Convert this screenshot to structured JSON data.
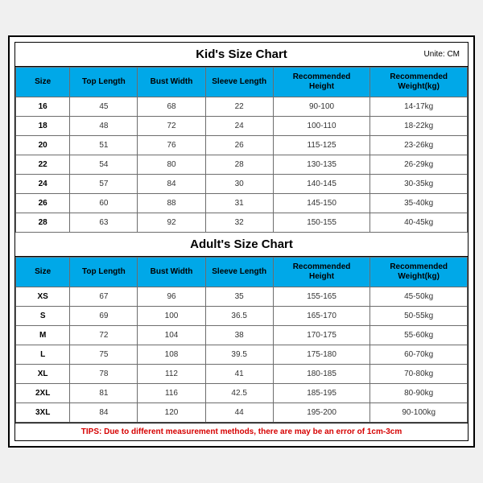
{
  "header_bg": "#00a8e8",
  "header_fg": "#000000",
  "tips_color": "#d60000",
  "tips_text": "TIPS: Due to different measurement methods, there are may be an error of 1cm-3cm",
  "kids": {
    "title": "Kid's Size Chart",
    "unit": "Unite: CM",
    "columns": [
      "Size",
      "Top Length",
      "Bust Width",
      "Sleeve Length",
      "Recommended Height",
      "Recommended Weight(kg)"
    ],
    "rows": [
      [
        "16",
        "45",
        "68",
        "22",
        "90-100",
        "14-17kg"
      ],
      [
        "18",
        "48",
        "72",
        "24",
        "100-110",
        "18-22kg"
      ],
      [
        "20",
        "51",
        "76",
        "26",
        "115-125",
        "23-26kg"
      ],
      [
        "22",
        "54",
        "80",
        "28",
        "130-135",
        "26-29kg"
      ],
      [
        "24",
        "57",
        "84",
        "30",
        "140-145",
        "30-35kg"
      ],
      [
        "26",
        "60",
        "88",
        "31",
        "145-150",
        "35-40kg"
      ],
      [
        "28",
        "63",
        "92",
        "32",
        "150-155",
        "40-45kg"
      ]
    ]
  },
  "adults": {
    "title": "Adult's Size Chart",
    "columns": [
      "Size",
      "Top Length",
      "Bust Width",
      "Sleeve Length",
      "Recommended Height",
      "Recommended Weight(kg)"
    ],
    "rows": [
      [
        "XS",
        "67",
        "96",
        "35",
        "155-165",
        "45-50kg"
      ],
      [
        "S",
        "69",
        "100",
        "36.5",
        "165-170",
        "50-55kg"
      ],
      [
        "M",
        "72",
        "104",
        "38",
        "170-175",
        "55-60kg"
      ],
      [
        "L",
        "75",
        "108",
        "39.5",
        "175-180",
        "60-70kg"
      ],
      [
        "XL",
        "78",
        "112",
        "41",
        "180-185",
        "70-80kg"
      ],
      [
        "2XL",
        "81",
        "116",
        "42.5",
        "185-195",
        "80-90kg"
      ],
      [
        "3XL",
        "84",
        "120",
        "44",
        "195-200",
        "90-100kg"
      ]
    ]
  }
}
